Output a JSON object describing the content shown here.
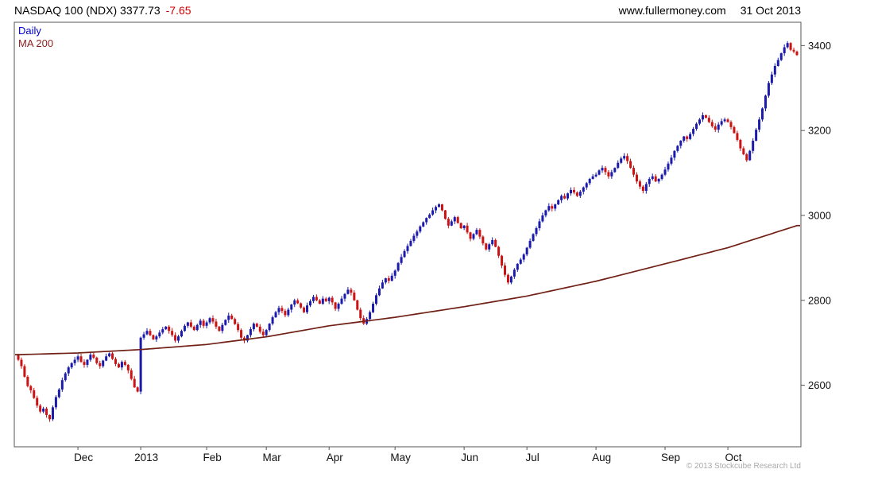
{
  "header": {
    "title": "NASDAQ 100 (NDX) 3377.73",
    "change": "-7.65",
    "website": "www.fullermoney.com",
    "date": "31 Oct 2013"
  },
  "legend": {
    "daily": "Daily",
    "ma": "MA 200"
  },
  "footer": {
    "copyright": "© 2013 Stockcube Research Ltd"
  },
  "colors": {
    "up_candle": "#1a1aad",
    "down_candle": "#cc1212",
    "ma_line": "#702015",
    "change_text": "#cc0000",
    "daily_label": "#0000cc",
    "ma_label": "#8b1f1f",
    "axis": "#555555",
    "axis_text": "#111111"
  },
  "chart_data": {
    "type": "candlestick",
    "title": "NASDAQ 100 (NDX) Daily with 200-day MA",
    "instrument": "NASDAQ 100 (NDX)",
    "last_close": 3377.73,
    "change": -7.65,
    "as_of": "31 Oct 2013",
    "y_ticks": [
      2600,
      2800,
      3000,
      3200,
      3400
    ],
    "y_range": [
      2455,
      3455
    ],
    "grid": false,
    "legend_position": "top-left",
    "x_labels": [
      {
        "label": "Dec",
        "i": 19
      },
      {
        "label": "2013",
        "i": 39
      },
      {
        "label": "Feb",
        "i": 60
      },
      {
        "label": "Mar",
        "i": 79
      },
      {
        "label": "Apr",
        "i": 99
      },
      {
        "label": "May",
        "i": 120
      },
      {
        "label": "Jun",
        "i": 142
      },
      {
        "label": "Jul",
        "i": 162
      },
      {
        "label": "Aug",
        "i": 184
      },
      {
        "label": "Sep",
        "i": 206
      },
      {
        "label": "Oct",
        "i": 226
      }
    ],
    "open_first": 2672,
    "closes": [
      2660,
      2645,
      2620,
      2598,
      2588,
      2570,
      2552,
      2538,
      2545,
      2530,
      2520,
      2548,
      2572,
      2590,
      2612,
      2628,
      2642,
      2652,
      2660,
      2668,
      2655,
      2648,
      2660,
      2672,
      2665,
      2652,
      2645,
      2658,
      2668,
      2675,
      2662,
      2650,
      2642,
      2655,
      2648,
      2635,
      2615,
      2595,
      2585,
      2712,
      2720,
      2728,
      2718,
      2708,
      2715,
      2724,
      2732,
      2738,
      2728,
      2718,
      2705,
      2715,
      2728,
      2740,
      2748,
      2738,
      2730,
      2742,
      2752,
      2740,
      2748,
      2758,
      2750,
      2738,
      2728,
      2742,
      2754,
      2764,
      2756,
      2744,
      2730,
      2712,
      2705,
      2718,
      2732,
      2745,
      2738,
      2726,
      2718,
      2730,
      2745,
      2760,
      2772,
      2782,
      2775,
      2765,
      2778,
      2790,
      2800,
      2793,
      2783,
      2772,
      2788,
      2798,
      2808,
      2800,
      2792,
      2804,
      2798,
      2806,
      2795,
      2780,
      2792,
      2804,
      2815,
      2825,
      2818,
      2800,
      2778,
      2758,
      2745,
      2756,
      2772,
      2792,
      2812,
      2828,
      2842,
      2852,
      2846,
      2858,
      2870,
      2888,
      2902,
      2916,
      2928,
      2940,
      2952,
      2962,
      2974,
      2984,
      2994,
      3002,
      3012,
      3020,
      3026,
      3012,
      2992,
      2976,
      2986,
      2996,
      2982,
      2970,
      2976,
      2960,
      2945,
      2956,
      2966,
      2950,
      2934,
      2920,
      2932,
      2942,
      2926,
      2905,
      2882,
      2860,
      2842,
      2856,
      2872,
      2886,
      2896,
      2908,
      2924,
      2940,
      2956,
      2970,
      2986,
      3000,
      3012,
      3022,
      3016,
      3026,
      3036,
      3046,
      3040,
      3052,
      3060,
      3054,
      3046,
      3056,
      3066,
      3076,
      3086,
      3092,
      3096,
      3106,
      3112,
      3102,
      3092,
      3102,
      3112,
      3124,
      3134,
      3140,
      3128,
      3112,
      3096,
      3080,
      3068,
      3058,
      3074,
      3086,
      3092,
      3080,
      3086,
      3096,
      3108,
      3122,
      3136,
      3152,
      3164,
      3176,
      3186,
      3180,
      3192,
      3204,
      3216,
      3226,
      3236,
      3230,
      3220,
      3210,
      3202,
      3214,
      3222,
      3226,
      3220,
      3208,
      3194,
      3178,
      3158,
      3144,
      3130,
      3152,
      3176,
      3202,
      3226,
      3252,
      3282,
      3312,
      3332,
      3352,
      3366,
      3382,
      3396,
      3406,
      3390,
      3386,
      3377.73
    ],
    "ma200_anchors": [
      [
        0,
        2672
      ],
      [
        19,
        2676
      ],
      [
        39,
        2684
      ],
      [
        60,
        2696
      ],
      [
        79,
        2714
      ],
      [
        99,
        2740
      ],
      [
        120,
        2760
      ],
      [
        142,
        2785
      ],
      [
        162,
        2810
      ],
      [
        184,
        2845
      ],
      [
        206,
        2886
      ],
      [
        226,
        2924
      ],
      [
        248,
        2976
      ]
    ]
  }
}
